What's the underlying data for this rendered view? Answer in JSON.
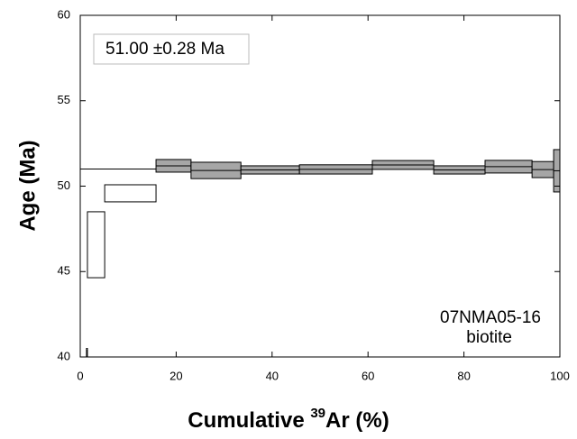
{
  "chart_data": {
    "type": "step_spectrum",
    "x_label_parts": [
      "Cumulative ",
      "39",
      "Ar (%)"
    ],
    "y_label": "Age (Ma)",
    "plateau_label": "51.00 ±0.28 Ma",
    "plateau_age": 51.0,
    "sample_lines": [
      "07NMA05-16",
      "biotite"
    ],
    "plateau_color": "#a6a6a6",
    "other_color": "#ffffff",
    "steps": [
      {
        "x0": 1.3,
        "x1": 1.5,
        "age": 38.0,
        "err": 2.5,
        "plateau": false
      },
      {
        "x0": 1.5,
        "x1": 5.1,
        "age": 46.57,
        "err": 1.93,
        "plateau": false
      },
      {
        "x0": 5.1,
        "x1": 15.8,
        "age": 49.58,
        "err": 0.5,
        "plateau": false
      },
      {
        "x0": 15.8,
        "x1": 23.1,
        "age": 51.19,
        "err": 0.37,
        "plateau": true
      },
      {
        "x0": 23.1,
        "x1": 33.5,
        "age": 50.92,
        "err": 0.48,
        "plateau": true
      },
      {
        "x0": 33.5,
        "x1": 45.7,
        "age": 50.95,
        "err": 0.24,
        "plateau": true
      },
      {
        "x0": 45.7,
        "x1": 60.9,
        "age": 50.98,
        "err": 0.27,
        "plateau": true
      },
      {
        "x0": 60.9,
        "x1": 73.7,
        "age": 51.24,
        "err": 0.26,
        "plateau": true
      },
      {
        "x0": 73.7,
        "x1": 84.4,
        "age": 50.95,
        "err": 0.24,
        "plateau": true
      },
      {
        "x0": 84.4,
        "x1": 94.2,
        "age": 51.14,
        "err": 0.37,
        "plateau": true
      },
      {
        "x0": 94.2,
        "x1": 98.7,
        "age": 50.97,
        "err": 0.47,
        "plateau": true
      },
      {
        "x0": 98.7,
        "x1": 100,
        "age": 50.9,
        "err": 1.24,
        "plateau": true
      }
    ],
    "xlim": [
      0,
      100
    ],
    "xticks": [
      0,
      20,
      40,
      60,
      80,
      100
    ],
    "ylim": [
      40,
      60
    ],
    "yticks": [
      40,
      45,
      50,
      55,
      60
    ]
  }
}
